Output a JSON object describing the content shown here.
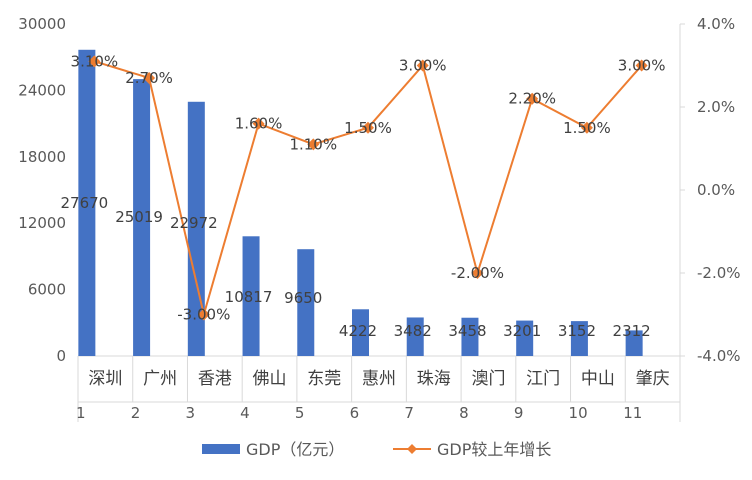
{
  "chart_data": {
    "type": "bar+line",
    "title": "",
    "categories": [
      "深圳",
      "广州",
      "香港",
      "佛山",
      "东莞",
      "惠州",
      "珠海",
      "澳门",
      "江门",
      "中山",
      "肇庆"
    ],
    "index_labels": [
      "1",
      "2",
      "3",
      "4",
      "5",
      "6",
      "7",
      "8",
      "9",
      "10",
      "11"
    ],
    "series": [
      {
        "name": "GDP（亿元）",
        "type": "bar",
        "axis": "left",
        "color": "#4472C4",
        "values": [
          27670,
          25019,
          22972,
          10817,
          9650,
          4222,
          3482,
          3458,
          3201,
          3152,
          2312
        ],
        "labels": [
          "27670",
          "25019",
          "22972",
          "10817",
          "9650",
          "4222",
          "3482",
          "3458",
          "3201",
          "3152",
          "2312"
        ]
      },
      {
        "name": "GDP较上年增长",
        "type": "line",
        "axis": "right",
        "color": "#ED7D31",
        "values": [
          3.1,
          2.7,
          -3.0,
          1.6,
          1.1,
          1.5,
          3.0,
          -2.0,
          2.2,
          1.5,
          3.0
        ],
        "labels": [
          "3.10%",
          "2.70%",
          "-3.00%",
          "1.60%",
          "1.10%",
          "1.50%",
          "3.00%",
          "-2.00%",
          "2.20%",
          "1.50%",
          "3.00%"
        ]
      }
    ],
    "y_left": {
      "min": 0,
      "max": 30000,
      "ticks": [
        0,
        6000,
        12000,
        18000,
        24000,
        30000
      ],
      "tick_labels": [
        "0",
        "6000",
        "12000",
        "18000",
        "24000",
        "30000"
      ]
    },
    "y_right": {
      "min": -4,
      "max": 4,
      "ticks": [
        -4,
        -2,
        0,
        2,
        4
      ],
      "tick_labels": [
        "-4.0%",
        "-2.0%",
        "0.0%",
        "2.0%",
        "4.0%"
      ]
    },
    "legend": {
      "position": "bottom",
      "items": [
        "GDP（亿元）",
        "GDP较上年增长"
      ]
    },
    "grid": false
  }
}
